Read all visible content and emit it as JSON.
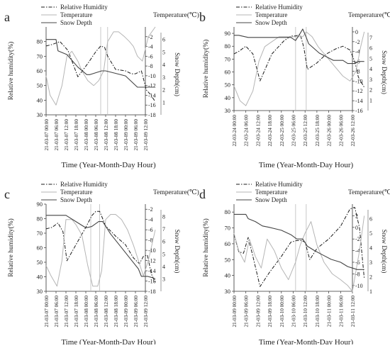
{
  "chart_data": [
    {
      "panel_label": "a",
      "type": "line",
      "x_tick_labels": [
        "21-03-07 00:00",
        "21-03-07 06:00",
        "21-03-07 12:00",
        "21-03-07 18:00",
        "21-03-08 00:00",
        "21-03-08 06:00",
        "21-03-08 12:00",
        "21-03-08 18:00",
        "21-03-09 00:00",
        "21-03-09 06:00",
        "21-03-09 12:00"
      ],
      "xlabel": "Time (Year-Month-Day Hour)",
      "ylabel_left": "Relative humidity(%)",
      "ylabel_right_outer": "Snow Depth(cm)",
      "ylabel_right_top": "Temperature(℃)",
      "ylim": [
        30,
        90
      ],
      "y_ticks": [
        30,
        40,
        50,
        60,
        70,
        80
      ],
      "temp_ylim": [
        -18,
        0
      ],
      "temp_ticks": [
        -18,
        -16,
        -14,
        -12,
        -10,
        -8,
        -6,
        -4,
        -2
      ],
      "snow_ylim": [
        0,
        7
      ],
      "snow_ticks": [
        1,
        2,
        3,
        4,
        5,
        6
      ],
      "legend": [
        "Relative Humidity",
        "Temperature",
        "Snow Depth"
      ],
      "vlines": [
        5.5,
        6.2
      ],
      "series": [
        {
          "name": "Relative Humidity",
          "x": [
            0,
            0.6,
            1.4,
            2.2,
            3.2,
            4.2,
            5.0,
            5.5,
            5.9,
            6.2,
            7,
            8,
            8.6,
            9,
            9.6,
            10.1,
            10.5,
            11
          ],
          "y": [
            77,
            78,
            80,
            74,
            56,
            65,
            73,
            77,
            76,
            70,
            61,
            60,
            58,
            58,
            60,
            47,
            44,
            39
          ]
        },
        {
          "name": "Temperature",
          "x": [
            0,
            0.4,
            1.0,
            1.6,
            2.1,
            2.6,
            3.2,
            3.6,
            4.2,
            4.8,
            5.3,
            5.8,
            6.2,
            6.8,
            7.3,
            7.9,
            8.4,
            8.8,
            9.2,
            9.7,
            10.3,
            11
          ],
          "y": [
            -10,
            -14,
            -16,
            -12,
            -6,
            -5,
            -7,
            -9,
            -11,
            -12,
            -11,
            -9,
            -3,
            -1,
            -1,
            -2,
            -3,
            -4,
            -6,
            -7,
            -2,
            0
          ]
        },
        {
          "name": "Snow Depth",
          "x": [
            0,
            1.0,
            1.2,
            2.1,
            3.2,
            4.1,
            4.4,
            5.6,
            6.0,
            7.0,
            8.0,
            9.2,
            9.8,
            10.5,
            11
          ],
          "y": [
            6.0,
            6.0,
            5.1,
            4.8,
            3.8,
            3.2,
            3.2,
            3.5,
            3.5,
            3.3,
            3.1,
            2.2,
            2.2,
            2.2,
            2.2
          ]
        }
      ]
    },
    {
      "panel_label": "b",
      "type": "line",
      "x_tick_labels": [
        "22-03-24 00:00",
        "22-03-24 06:00",
        "22-03-24 12:00",
        "22-03-24 18:00",
        "22-03-25 00:00",
        "22-03-25 06:00",
        "22-03-25 12:00",
        "22-03-25 18:00",
        "22-03-26 00:00",
        "22-03-26 06:00",
        "22-03-26 12:00"
      ],
      "xlabel": "Time (Year-Month-Day Hour)",
      "ylabel_left": "Relative humidity(%)",
      "ylabel_right_outer": "Snow Depth(cm)",
      "ylabel_right_top": "Temperature(℃)",
      "ylim": [
        30,
        95
      ],
      "y_ticks": [
        30,
        40,
        50,
        60,
        70,
        80,
        90
      ],
      "temp_ylim": [
        -16,
        1
      ],
      "temp_ticks": [
        -16,
        -14,
        -12,
        -10,
        -8,
        -6,
        -4,
        -2,
        0
      ],
      "snow_ylim": [
        0,
        8
      ],
      "snow_ticks": [
        1,
        2,
        3,
        4,
        5,
        6,
        7
      ],
      "legend": [
        "Relative Humidity",
        "Temperature",
        "Snow Depth"
      ],
      "vlines": [
        5.2,
        6.1
      ],
      "series": [
        {
          "name": "Relative Humidity",
          "x": [
            0,
            0.4,
            1.0,
            1.6,
            2.2,
            3.2,
            4.2,
            4.8,
            5.2,
            5.6,
            5.9,
            6.2,
            7.0,
            7.8,
            8.6,
            9.2,
            9.8,
            10.2,
            10.5,
            11
          ],
          "y": [
            74,
            76,
            80,
            74,
            53,
            74,
            84,
            88,
            88,
            89,
            79,
            62,
            67,
            74,
            78,
            80,
            77,
            68,
            56,
            48
          ]
        },
        {
          "name": "Temperature",
          "x": [
            0,
            0.5,
            1.0,
            1.6,
            2.1,
            2.6,
            3.2,
            3.8,
            4.4,
            5.0,
            5.4,
            5.8,
            6.1,
            6.6,
            7.1,
            7.8,
            8.5,
            9.2,
            9.8,
            10.3,
            10.7,
            11
          ],
          "y": [
            -11,
            -14,
            -15,
            -12,
            -6,
            -3,
            -2,
            -1,
            -1,
            -1,
            -1,
            -1,
            0,
            -1,
            -3,
            -5,
            -7,
            -9,
            -10,
            -8,
            -3,
            0
          ]
        },
        {
          "name": "Snow Depth",
          "x": [
            0,
            0.4,
            1.2,
            2.2,
            3.2,
            4.2,
            4.8,
            5.2,
            5.6,
            5.8,
            6.1,
            6.3,
            7.2,
            8.4,
            9.2,
            9.6,
            10.2,
            10.5,
            11
          ],
          "y": [
            7.2,
            7.2,
            7.0,
            7.0,
            7.0,
            7.0,
            7.0,
            6.7,
            7.4,
            7.8,
            7.0,
            6.4,
            5.5,
            4.8,
            4.8,
            4.5,
            4.5,
            4.7,
            4.7
          ]
        }
      ]
    },
    {
      "panel_label": "c",
      "type": "line",
      "x_tick_labels": [
        "21-03-07 00:00",
        "21-03-07 06:00",
        "21-03-07 12:00",
        "21-03-07 18:00",
        "21-03-08 00:00",
        "21-03-08 06:00",
        "21-03-08 12:00",
        "21-03-08 18:00",
        "21-03-09 00:00",
        "21-03-09 06:00",
        "21-03-09 12:00"
      ],
      "xlabel": "Time (Year-Month-Day Hour)",
      "ylabel_left": "Relative humidity(%)",
      "ylabel_right_outer": "Snow Depth(cm)",
      "ylabel_right_top": "Temperature(℃)",
      "ylim": [
        30,
        90
      ],
      "y_ticks": [
        30,
        40,
        50,
        60,
        70,
        80,
        90
      ],
      "temp_ylim": [
        -18,
        -1
      ],
      "temp_ticks": [
        -18,
        -16,
        -14,
        -12,
        -10,
        -8,
        -6,
        -4,
        -2
      ],
      "snow_ylim": [
        2,
        9
      ],
      "snow_ticks": [
        3,
        4,
        5,
        6,
        7,
        8
      ],
      "legend": [
        "Relative Humidity",
        "Temperature",
        "Snow Depth"
      ],
      "vlines": [
        4.5,
        5.4
      ],
      "series": [
        {
          "name": "Relative Humidity",
          "x": [
            0,
            0.6,
            1.2,
            1.7,
            2.1,
            3.0,
            4.0,
            4.6,
            5.0,
            5.4,
            6.0,
            7.0,
            8.0,
            8.8,
            9.4,
            9.8,
            10.2,
            10.6,
            11
          ],
          "y": [
            73,
            74,
            77,
            71,
            51,
            62,
            74,
            82,
            85,
            85,
            75,
            68,
            62,
            53,
            49,
            54,
            55,
            42,
            36
          ]
        },
        {
          "name": "Temperature",
          "x": [
            0,
            0.5,
            1.1,
            1.6,
            2.0,
            2.6,
            3.0,
            3.6,
            4.2,
            4.7,
            5.2,
            5.6,
            6.0,
            6.5,
            7.0,
            7.6,
            8.2,
            8.8,
            9.3,
            9.8,
            10.3,
            11
          ],
          "y": [
            -13,
            -15,
            -17,
            -12,
            -4,
            -4,
            -5,
            -7,
            -13,
            -17,
            -17,
            -14,
            -4,
            -3,
            -3,
            -4,
            -6,
            -9,
            -12,
            -15,
            -12,
            -6
          ]
        },
        {
          "name": "Snow Depth",
          "x": [
            0,
            0.3,
            1.0,
            2.0,
            3.0,
            4.0,
            4.6,
            5.3,
            5.7,
            6.5,
            7.5,
            8.5,
            9.3,
            9.6,
            10.2,
            10.7,
            11
          ],
          "y": [
            8.1,
            8.1,
            8.1,
            8.1,
            7.6,
            7.1,
            7.2,
            7.6,
            7.6,
            6.6,
            5.6,
            4.6,
            3.8,
            3.2,
            3.2,
            3.1,
            3.0
          ]
        }
      ]
    },
    {
      "panel_label": "d",
      "type": "line",
      "x_tick_labels": [
        "21-03-09 00:00",
        "21-03-09 06:00",
        "21-03-09 12:00",
        "21-03-09 18:00",
        "21-03-10 00:00",
        "21-03-10 06:00",
        "21-03-10 12:00",
        "21-03-10 18:00",
        "21-03-11 00:00",
        "21-03-11 06:00",
        "21-03-11 12:00"
      ],
      "xlabel": "Time (Year-Month-Day Hour)",
      "ylabel_left": "Relative humidity(%)",
      "ylabel_right_outer": "Snow Depth(cm)",
      "ylabel_right_top": "Temperature(℃)",
      "ylim": [
        30,
        85
      ],
      "y_ticks": [
        30,
        40,
        50,
        60,
        70,
        80
      ],
      "temp_ylim": [
        -11,
        4
      ],
      "temp_ticks": [
        -10,
        -8,
        -6,
        -4,
        -2,
        0,
        2
      ],
      "snow_ylim": [
        1,
        7
      ],
      "snow_ticks": [
        1,
        2,
        3,
        4,
        5,
        6
      ],
      "legend": [
        "Relative Humidity",
        "Temperature",
        "Snow Depth"
      ],
      "vlines": [
        5.2,
        6.1
      ],
      "series": [
        {
          "name": "Relative Humidity",
          "x": [
            0,
            0.4,
            0.8,
            1.2,
            1.6,
            2.2,
            3.0,
            4.0,
            4.8,
            5.3,
            5.7,
            6.0,
            6.4,
            7.0,
            8.0,
            9.0,
            9.8,
            10.2,
            10.6,
            11
          ],
          "y": [
            66,
            55,
            54,
            64,
            52,
            33,
            42,
            52,
            61,
            62,
            62,
            61,
            50,
            57,
            63,
            71,
            82,
            83,
            70,
            38
          ]
        },
        {
          "name": "Temperature",
          "x": [
            0,
            0.4,
            0.9,
            1.3,
            1.8,
            2.3,
            2.8,
            3.4,
            4.0,
            4.6,
            5.2,
            5.6,
            6.0,
            6.5,
            7.0,
            7.6,
            8.3,
            9.0,
            9.6,
            10.0,
            10.6,
            11
          ],
          "y": [
            -1,
            -4,
            -6,
            -2,
            -5,
            -7,
            -2,
            -4,
            -7,
            -9,
            -6,
            -3,
            -1,
            1,
            -3,
            -6,
            -8,
            -9,
            -10,
            -11,
            -4,
            2
          ]
        },
        {
          "name": "Snow Depth",
          "x": [
            0,
            0.5,
            1.0,
            1.2,
            1.8,
            2.4,
            3.0,
            4.0,
            4.8,
            5.3,
            5.8,
            6.2,
            6.8,
            7.5,
            8.2,
            9.0,
            9.6,
            10.0,
            10.4,
            11
          ],
          "y": [
            6.3,
            6.3,
            6.3,
            6.0,
            5.8,
            5.5,
            5.4,
            5.2,
            4.9,
            4.6,
            4.6,
            4.1,
            3.8,
            3.5,
            3.2,
            3.0,
            2.7,
            2.6,
            2.5,
            2.5
          ]
        }
      ]
    }
  ]
}
